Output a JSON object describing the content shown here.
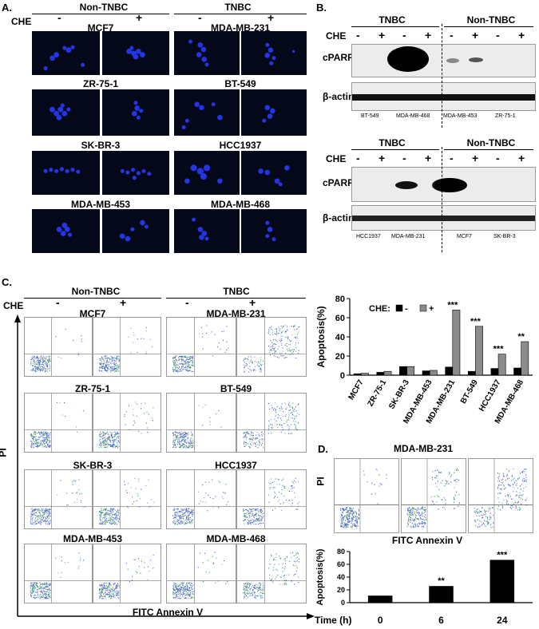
{
  "panelA": {
    "letter": "A.",
    "che": "CHE",
    "minus": "-",
    "plus": "+",
    "group_left": "Non-TNBC",
    "group_right": "TNBC",
    "left_lines": [
      "MCF7",
      "ZR-75-1",
      "SK-BR-3",
      "MDA-MB-453"
    ],
    "right_lines": [
      "MDA-MB-231",
      "BT-549",
      "HCC1937",
      "MDA-MB-468"
    ]
  },
  "panelB": {
    "letter": "B.",
    "che": "CHE",
    "tnbc": "TNBC",
    "non_tnbc": "Non-TNBC",
    "cparp": "cPARP",
    "actin": "β-actin",
    "signs": [
      "-",
      "+",
      "-",
      "+",
      "-",
      "+",
      "-",
      "+"
    ],
    "top_lanes": [
      "BT-549",
      "MDA-MB-468",
      "MDA-MB-453",
      "ZR-75-1"
    ],
    "bottom_lanes": [
      "HCC1937",
      "MDA-MB-231",
      "MCF7",
      "SK-BR-3"
    ]
  },
  "panelC": {
    "letter": "C.",
    "che": "CHE",
    "group_left": "Non-TNBC",
    "group_right": "TNBC",
    "minus": "-",
    "plus": "+",
    "left_lines": [
      "MCF7",
      "ZR-75-1",
      "SK-BR-3",
      "MDA-MB-453"
    ],
    "right_lines": [
      "MDA-MB-231",
      "BT-549",
      "HCC1937",
      "MDA-MB-468"
    ],
    "y_axis": "PI",
    "x_axis": "FITC Annexin V"
  },
  "chart_data": [
    {
      "type": "bar",
      "ylabel": "Apoptosis(%)",
      "ylim": [
        0,
        80
      ],
      "yticks": [
        0,
        20,
        40,
        60,
        80
      ],
      "legend_title": "CHE:",
      "legend": [
        "-",
        "+"
      ],
      "legend_position": "top",
      "categories": [
        "MCF7",
        "ZR-75-1",
        "SK-BR-3",
        "MDA-MB-453",
        "MDA-MB-231",
        "BT-549",
        "HCC1937",
        "MDA-MB-468"
      ],
      "series": [
        {
          "name": "-",
          "color": "#000000",
          "values": [
            1.5,
            3,
            9,
            4.5,
            8.5,
            4,
            7,
            7.5
          ]
        },
        {
          "name": "+",
          "color": "#8c8c8c",
          "values": [
            2,
            4,
            9,
            5,
            68,
            51,
            22,
            35
          ]
        }
      ],
      "annotations": [
        "",
        "",
        "",
        "",
        "***",
        "***",
        "***",
        "**"
      ]
    },
    {
      "type": "bar",
      "ylabel": "Apoptosis(%)",
      "xlabel": "Time (h)",
      "ylim": [
        0,
        80
      ],
      "yticks": [
        0,
        20,
        40,
        60,
        80
      ],
      "categories": [
        "0",
        "6",
        "24"
      ],
      "values": [
        11,
        26,
        67
      ],
      "annotations": [
        "",
        "**",
        "***"
      ]
    }
  ],
  "panelD": {
    "letter": "D.",
    "title": "MDA-MB-231",
    "y_axis": "PI",
    "x_axis": "FITC Annexin V"
  }
}
